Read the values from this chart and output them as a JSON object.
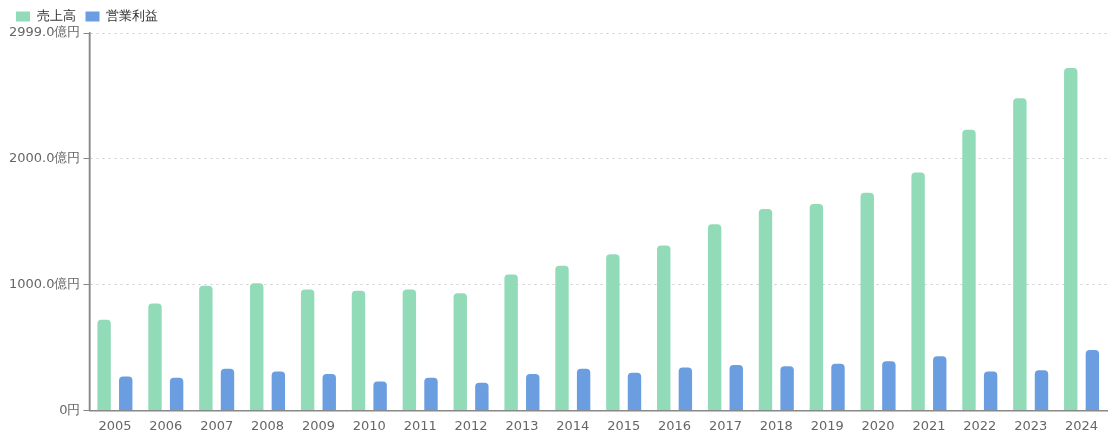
{
  "chart_data": {
    "type": "bar",
    "categories": [
      "2005",
      "2006",
      "2007",
      "2008",
      "2009",
      "2010",
      "2011",
      "2012",
      "2013",
      "2014",
      "2015",
      "2016",
      "2017",
      "2018",
      "2019",
      "2020",
      "2021",
      "2022",
      "2023",
      "2024"
    ],
    "series": [
      {
        "name": "売上高",
        "color": "#92dbb8",
        "values": [
          720,
          850,
          990,
          1010,
          960,
          950,
          960,
          930,
          1080,
          1150,
          1240,
          1310,
          1480,
          1600,
          1640,
          1730,
          1890,
          2230,
          2480,
          2720
        ]
      },
      {
        "name": "営業利益",
        "color": "#6b9ee0",
        "values": [
          270,
          260,
          330,
          310,
          290,
          230,
          260,
          220,
          290,
          330,
          300,
          340,
          360,
          350,
          370,
          390,
          430,
          310,
          320,
          480
        ]
      }
    ],
    "ylim": [
      0,
      2999
    ],
    "yticks": [
      {
        "value": 0,
        "label": "0円"
      },
      {
        "value": 1000,
        "label": "1000.0億円"
      },
      {
        "value": 2000,
        "label": "2000.0億円"
      },
      {
        "value": 2999,
        "label": "2999.0億円"
      }
    ],
    "grid": "y",
    "legend": "top left"
  }
}
